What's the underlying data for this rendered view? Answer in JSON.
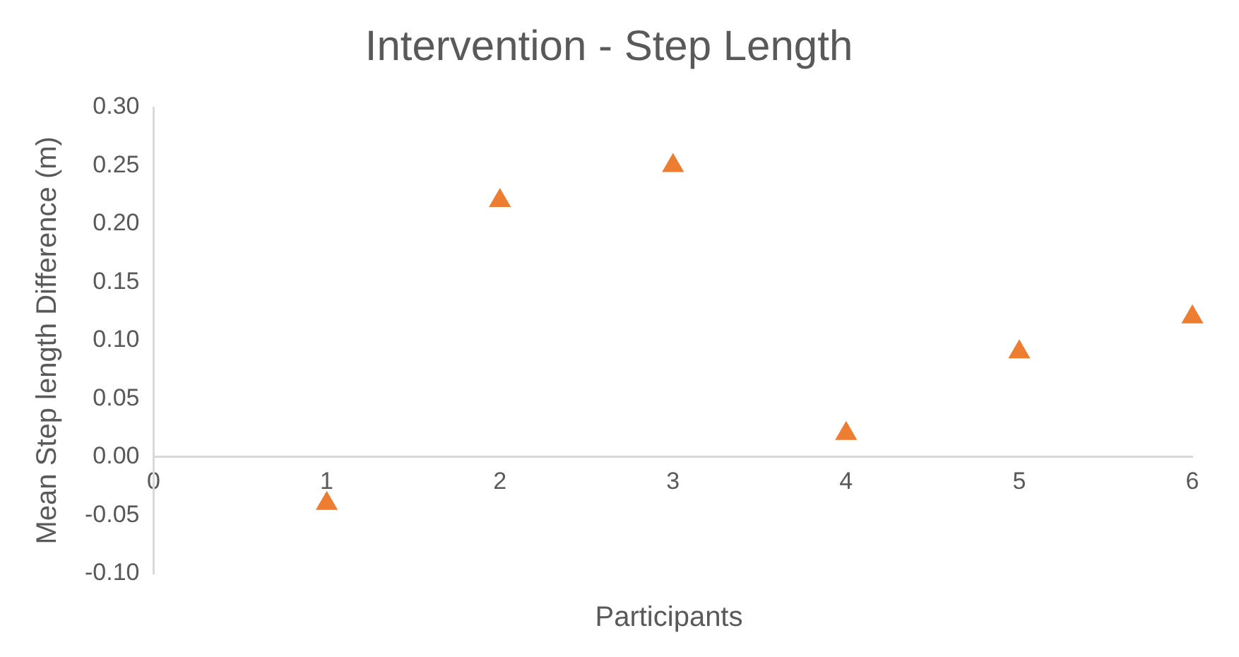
{
  "chart_data": {
    "type": "scatter",
    "title": "Intervention - Step Length",
    "xlabel": "Participants",
    "ylabel": "Mean Step length Difference (m)",
    "x": [
      1,
      2,
      3,
      4,
      5,
      6
    ],
    "series": [
      {
        "color": "#ed7d31",
        "values": [
          -0.04,
          0.22,
          0.25,
          0.02,
          0.09,
          0.12
        ]
      }
    ],
    "xlim": [
      0,
      6
    ],
    "xticks": [
      0,
      1,
      2,
      3,
      4,
      5,
      6
    ],
    "ylim": [
      -0.1,
      0.3
    ],
    "yticks": [
      {
        "value": -0.1,
        "label": "-0.10"
      },
      {
        "value": -0.05,
        "label": "-0.05"
      },
      {
        "value": 0,
        "label": "0.00"
      },
      {
        "value": 0.05,
        "label": "0.05"
      },
      {
        "value": 0.1,
        "label": "0.10"
      },
      {
        "value": 0.15,
        "label": "0.15"
      },
      {
        "value": 0.2,
        "label": "0.20"
      },
      {
        "value": 0.25,
        "label": "0.25"
      },
      {
        "value": 0.3,
        "label": "0.30"
      }
    ],
    "grid": false,
    "legend": false,
    "marker": "triangle"
  }
}
